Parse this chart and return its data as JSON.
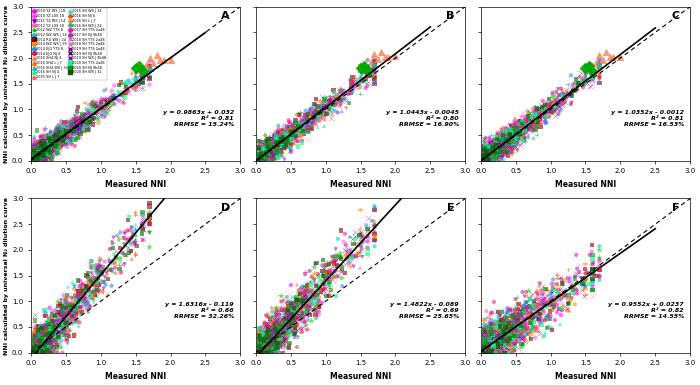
{
  "subplots": [
    {
      "label": "A",
      "equation": "y = 0.9863x + 0.032",
      "r2": "R² = 0.81",
      "rrmse": "RRMSE = 15.24%",
      "slope": 0.9863,
      "intercept": 0.032
    },
    {
      "label": "B",
      "equation": "y = 1.0443x - 0.0045",
      "r2": "R² = 0.80",
      "rrmse": "RRMSE = 16.90%",
      "slope": 1.0443,
      "intercept": -0.0045
    },
    {
      "label": "C",
      "equation": "y = 1.0352x - 0.0012",
      "r2": "R² = 0.81",
      "rrmse": "RRMSE = 16.53%",
      "slope": 1.0352,
      "intercept": -0.0012
    },
    {
      "label": "D",
      "equation": "y = 1.6316x - 0.119",
      "r2": "R² = 0.66",
      "rrmse": "RRMSE = 32.26%",
      "slope": 1.6316,
      "intercept": -0.119
    },
    {
      "label": "E",
      "equation": "y = 1.4822x - 0.089",
      "r2": "R² = 0.69",
      "rrmse": "RRMSE = 25.65%",
      "slope": 1.4822,
      "intercept": -0.089
    },
    {
      "label": "F",
      "equation": "y = 0.9552x + 0.0237",
      "r2": "R² = 0.82",
      "rrmse": "RRMSE = 14.55%",
      "slope": 0.9552,
      "intercept": 0.0237
    }
  ],
  "xlim": [
    0.0,
    3.0
  ],
  "ylim": [
    0.0,
    3.0
  ],
  "xticks": [
    0.0,
    0.5,
    1.0,
    1.5,
    2.0,
    2.5,
    3.0
  ],
  "yticks": [
    0.0,
    0.5,
    1.0,
    1.5,
    2.0,
    2.5,
    3.0
  ],
  "xlabel": "Measured NNI",
  "ylabel": "NNI calculated by universal N₂ dilution curve",
  "legend_entries": [
    {
      "label": "2010 YZ WS J 18",
      "color": "#ff00ff",
      "marker": "o"
    },
    {
      "label": "2010 YZ LXS 18",
      "color": "#ff00ff",
      "marker": "o"
    },
    {
      "label": "2011 YZ WS J 14",
      "color": "#9400d3",
      "marker": "v"
    },
    {
      "label": "2012 YZ LXS 18",
      "color": "#ff69b4",
      "marker": "o"
    },
    {
      "label": "2012 WZ YTS 8",
      "color": "#00ff00",
      "marker": "*"
    },
    {
      "label": "2012 WZ WS J 14",
      "color": "#00ced1",
      "marker": "o"
    },
    {
      "label": "2014 RG WS J 24",
      "color": "#8b0000",
      "marker": "s"
    },
    {
      "label": "2014 WZ WS J 19",
      "color": "#ff8c00",
      "marker": "o"
    },
    {
      "label": "2014 EJG YTS 8",
      "color": "#1e90ff",
      "marker": "o"
    },
    {
      "label": "2014 EJG NJ 4",
      "color": "#dc143c",
      "marker": "o"
    },
    {
      "label": "2015 SH4 NJ 4",
      "color": "#ff7f50",
      "marker": "^"
    },
    {
      "label": "2015 SH4 L J 7",
      "color": "#ff7f50",
      "marker": "^"
    },
    {
      "label": "2015 SH4 WS J 34",
      "color": "#20b2aa",
      "marker": "^"
    },
    {
      "label": "2015 SH NJ 4",
      "color": "#00fa9a",
      "marker": "^"
    },
    {
      "label": "2015 SH L J 7",
      "color": "#ff6347",
      "marker": "^"
    },
    {
      "label": "2015 SH WS J 34",
      "color": "#40e0d0",
      "marker": "^"
    },
    {
      "label": "2016 SH NJ 6",
      "color": "#ff4500",
      "marker": "+"
    },
    {
      "label": "2016 SH L J 7",
      "color": "#ff8c00",
      "marker": "+"
    },
    {
      "label": "2016 SH WS J 24",
      "color": "#20b2aa",
      "marker": "+"
    },
    {
      "label": "2017 SH YTS 2a48",
      "color": "#ff1493",
      "marker": "o"
    },
    {
      "label": "2017 SH NJ 9b48",
      "color": "#9932cc",
      "marker": "o"
    },
    {
      "label": "2018 SH YTS 2a48",
      "color": "#ff69b4",
      "marker": "x"
    },
    {
      "label": "2018 SH YTS 2a48",
      "color": "#da70d6",
      "marker": "x"
    },
    {
      "label": "2019 SH YTS 2a48",
      "color": "#8b008b",
      "marker": "x"
    },
    {
      "label": "2019 SH NJ 9b48",
      "color": "#4b0082",
      "marker": "x"
    },
    {
      "label": "2019 SH WS J 9b48",
      "color": "#6a0dad",
      "marker": "x"
    },
    {
      "label": "2020 SH YTS 2a48",
      "color": "#00ff7f",
      "marker": "s"
    },
    {
      "label": "2020 SH NJ 9b48",
      "color": "#228b22",
      "marker": "s"
    },
    {
      "label": "2020 SH WS J 32",
      "color": "#006400",
      "marker": "s"
    }
  ],
  "bg_color": "#ffffff",
  "scatter_alpha": 0.5,
  "scatter_size": 8
}
